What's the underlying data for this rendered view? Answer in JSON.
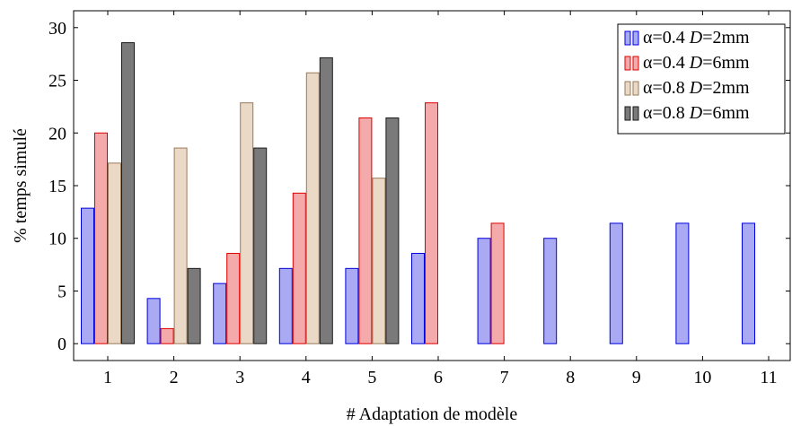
{
  "chart_data": {
    "type": "bar",
    "title": "",
    "xlabel": "# Adaptation de modèle",
    "ylabel": "% temps simulé",
    "categories": [
      "1",
      "2",
      "3",
      "4",
      "5",
      "6",
      "7",
      "8",
      "9",
      "10",
      "11"
    ],
    "ylim": [
      -1.6,
      31.6
    ],
    "yticks": [
      0,
      5,
      10,
      15,
      20,
      25,
      30
    ],
    "grid": false,
    "legend_position": "top-right",
    "series": [
      {
        "legend_prefix": "α=0.4 ",
        "legend_var": "D",
        "legend_suffix": "=2mm",
        "fill": "#aaaaf4",
        "stroke": "#0000dd",
        "values": [
          12.86,
          4.29,
          5.71,
          7.14,
          7.14,
          8.57,
          10.0,
          10.0,
          11.43,
          11.43,
          11.43
        ]
      },
      {
        "legend_prefix": "α=0.4 ",
        "legend_var": "D",
        "legend_suffix": "=6mm",
        "fill": "#f4aaaa",
        "stroke": "#dd0000",
        "values": [
          20.0,
          1.43,
          8.57,
          14.29,
          21.43,
          22.86,
          11.43,
          null,
          null,
          null,
          null
        ]
      },
      {
        "legend_prefix": "α=0.8 ",
        "legend_var": "D",
        "legend_suffix": "=2mm",
        "fill": "#ead9c6",
        "stroke": "#9a7a5a",
        "values": [
          17.14,
          18.57,
          22.86,
          25.71,
          15.71,
          null,
          null,
          null,
          null,
          null,
          null
        ]
      },
      {
        "legend_prefix": "α=0.8 ",
        "legend_var": "D",
        "legend_suffix": "=6mm",
        "fill": "#7a7a7a",
        "stroke": "#1a1a1a",
        "values": [
          28.57,
          7.14,
          18.57,
          27.14,
          21.43,
          null,
          null,
          null,
          null,
          null,
          null
        ]
      }
    ]
  }
}
